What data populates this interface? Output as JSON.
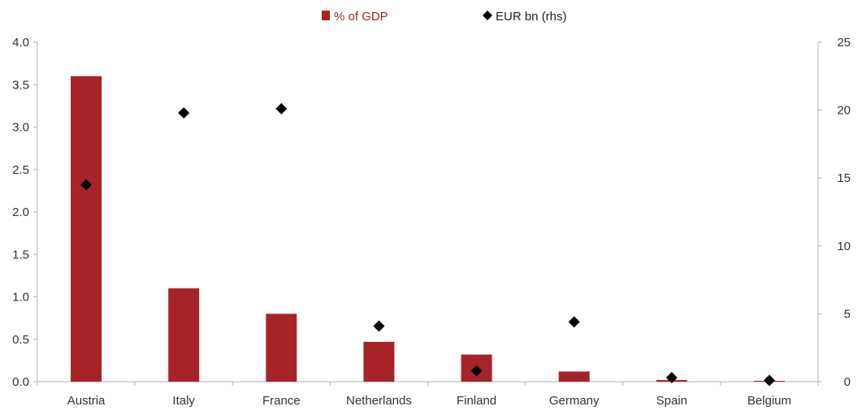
{
  "chart_data": {
    "type": "bar",
    "title": "",
    "xlabel": "",
    "ylabel": "",
    "ylabel_right": "",
    "categories": [
      "Austria",
      "Italy",
      "France",
      "Netherlands",
      "Finland",
      "Germany",
      "Spain",
      "Belgium"
    ],
    "series": [
      {
        "name": "% of GDP",
        "type": "bar",
        "axis": "left",
        "color": "#a62428",
        "values": [
          3.6,
          1.1,
          0.8,
          0.47,
          0.32,
          0.12,
          0.02,
          0.01
        ]
      },
      {
        "name": "EUR bn (rhs)",
        "type": "scatter",
        "marker": "diamond",
        "axis": "right",
        "color": "#000000",
        "values": [
          14.5,
          19.8,
          20.1,
          4.1,
          0.8,
          4.4,
          0.3,
          0.1
        ]
      }
    ],
    "ylim": [
      0,
      4.0
    ],
    "yticks": [
      "0.0",
      "0.5",
      "1.0",
      "1.5",
      "2.0",
      "2.5",
      "3.0",
      "3.5",
      "4.0"
    ],
    "ylim_right": [
      0,
      25
    ],
    "yticks_right": [
      "0",
      "5",
      "10",
      "15",
      "20",
      "25"
    ],
    "grid": false,
    "legend_position": "top-center"
  }
}
